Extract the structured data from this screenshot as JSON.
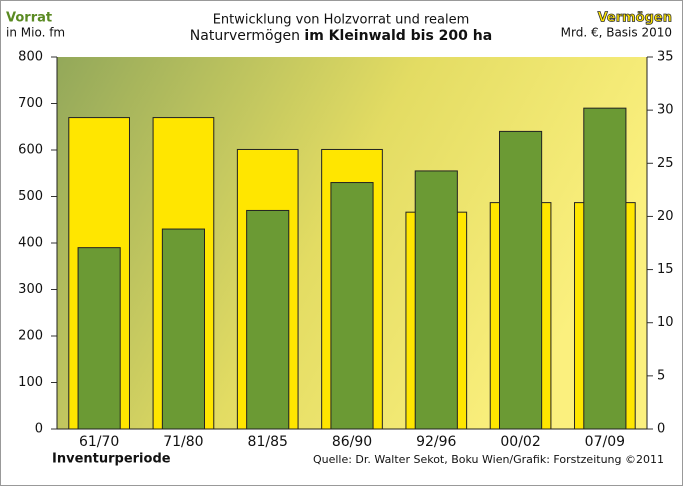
{
  "chart_data": {
    "type": "bar",
    "title": [
      "Entwicklung von Holzvorrat und realem",
      "Naturvermögen",
      "im Kleinwald bis 200 ha"
    ],
    "ylabel": "in Mio. fm",
    "y2label": "Mrd. €, Basis 2010",
    "xlabel": "Inventurperiode",
    "source": "Quelle: Dr. Walter Sekot, Boku Wien/Grafik: Forstzeitung ©2011",
    "categories": [
      "61/70",
      "71/80",
      "81/85",
      "86/90",
      "92/96",
      "00/02",
      "07/09"
    ],
    "series": [
      {
        "name": "Vermögen",
        "color": "#ffe600",
        "axis": "y2",
        "values": [
          29.3,
          29.3,
          26.3,
          26.3,
          20.4,
          21.3,
          21.3
        ]
      },
      {
        "name": "Vorrat",
        "color": "#6b9a34",
        "values": [
          390,
          430,
          470,
          530,
          555,
          640,
          690
        ]
      }
    ],
    "ylim": [
      0,
      800
    ],
    "yticks": [
      0,
      100,
      200,
      300,
      400,
      500,
      600,
      700,
      800
    ],
    "y2lim": [
      0,
      35
    ],
    "y2ticks": [
      0,
      5,
      10,
      15,
      20,
      25,
      30,
      35
    ]
  }
}
